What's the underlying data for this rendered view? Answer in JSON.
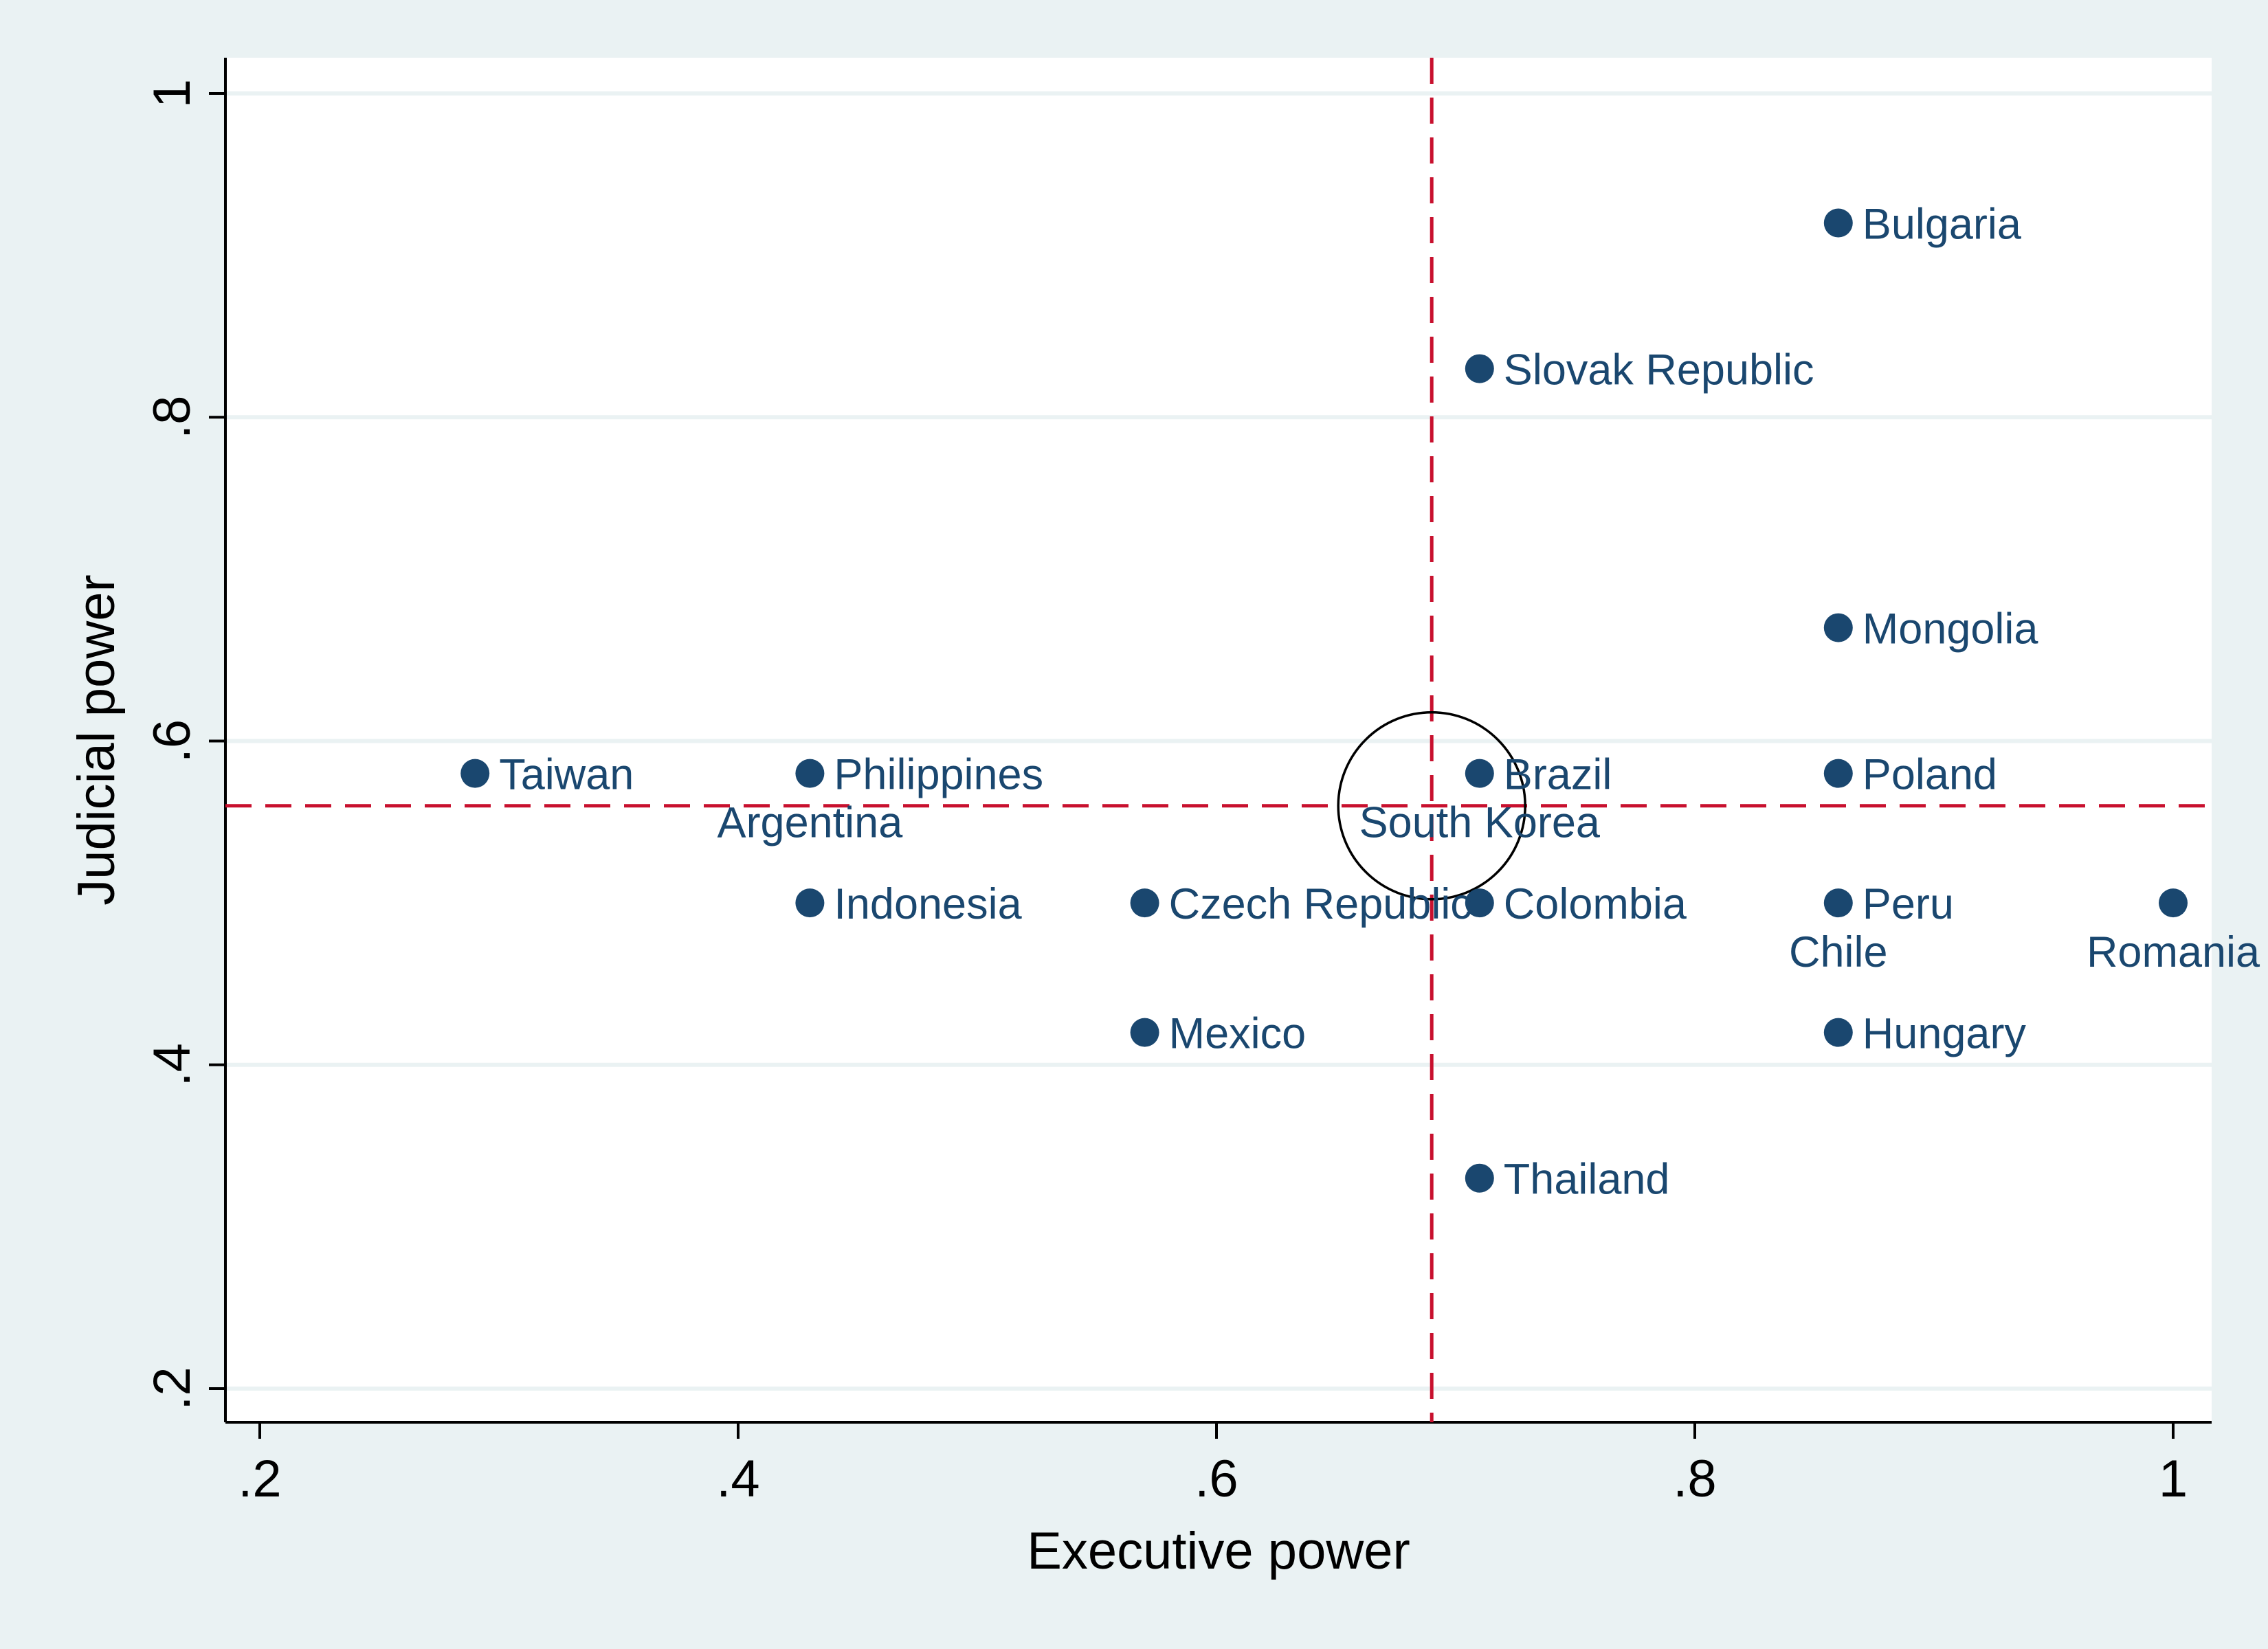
{
  "chart_data": {
    "type": "scatter",
    "xlabel": "Executive power",
    "ylabel": "Judicial power",
    "xlim": [
      0.2,
      1.0
    ],
    "ylim": [
      0.2,
      1.0
    ],
    "xticks": [
      ".2",
      ".4",
      ".6",
      ".8",
      "1"
    ],
    "yticks": [
      ".2",
      ".4",
      ".6",
      ".8",
      "1"
    ],
    "grid": "horizontal",
    "reference_lines": {
      "x": 0.69,
      "y": 0.56,
      "color": "#c8102e",
      "style": "dashed"
    },
    "highlight_circle": {
      "x": 0.69,
      "y": 0.56,
      "label": "South Korea"
    },
    "marker_color": "#1a476f",
    "points": [
      {
        "label": "Taiwan",
        "x": 0.29,
        "y": 0.58,
        "label_position": "right"
      },
      {
        "label": "Philippines",
        "x": 0.43,
        "y": 0.58,
        "label_position": "right"
      },
      {
        "label": "Argentina",
        "x": 0.43,
        "y": 0.58,
        "label_position": "below"
      },
      {
        "label": "Indonesia",
        "x": 0.43,
        "y": 0.5,
        "label_position": "right"
      },
      {
        "label": "Czech Republic",
        "x": 0.57,
        "y": 0.5,
        "label_position": "right"
      },
      {
        "label": "Mexico",
        "x": 0.57,
        "y": 0.42,
        "label_position": "right"
      },
      {
        "label": "Bulgaria",
        "x": 0.86,
        "y": 0.92,
        "label_position": "right"
      },
      {
        "label": "Slovak Republic",
        "x": 0.71,
        "y": 0.83,
        "label_position": "right"
      },
      {
        "label": "Mongolia",
        "x": 0.86,
        "y": 0.67,
        "label_position": "right"
      },
      {
        "label": "Brazil",
        "x": 0.71,
        "y": 0.58,
        "label_position": "right"
      },
      {
        "label": "South Korea",
        "x": 0.71,
        "y": 0.58,
        "label_position": "below"
      },
      {
        "label": "Poland",
        "x": 0.86,
        "y": 0.58,
        "label_position": "right"
      },
      {
        "label": "Colombia",
        "x": 0.71,
        "y": 0.5,
        "label_position": "right"
      },
      {
        "label": "Peru",
        "x": 0.86,
        "y": 0.5,
        "label_position": "right"
      },
      {
        "label": "Chile",
        "x": 0.86,
        "y": 0.5,
        "label_position": "below"
      },
      {
        "label": "Romania",
        "x": 1.0,
        "y": 0.5,
        "label_position": "below"
      },
      {
        "label": "Hungary",
        "x": 0.86,
        "y": 0.42,
        "label_position": "right"
      },
      {
        "label": "Thailand",
        "x": 0.71,
        "y": 0.33,
        "label_position": "right"
      }
    ]
  }
}
